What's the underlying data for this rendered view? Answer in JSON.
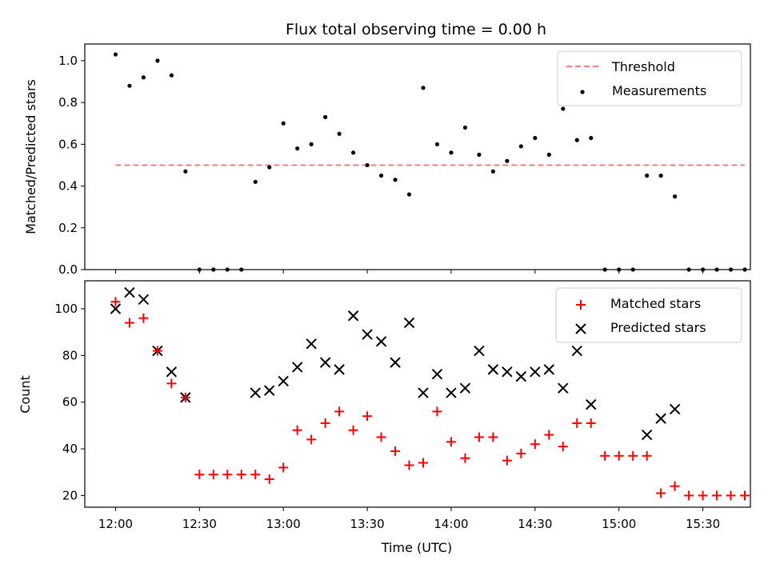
{
  "chart_data": [
    {
      "type": "scatter",
      "title": "Flux total observing time = 0.00 h",
      "xlabel": "",
      "ylabel": "Matched/Predicted stars",
      "xlim": [
        "11:49",
        "15:47"
      ],
      "ylim": [
        0,
        1.08
      ],
      "yticks": [
        "0.0",
        "0.2",
        "0.4",
        "0.6",
        "0.8",
        "1.0"
      ],
      "legend_position": "top-right",
      "colors": {
        "threshold": "#f08080",
        "measurements": "#000000"
      },
      "series": [
        {
          "name": "Threshold",
          "kind": "dashed-line",
          "x": [
            "12:00",
            "15:45"
          ],
          "y": [
            0.5,
            0.5
          ]
        },
        {
          "name": "Measurements",
          "kind": "points",
          "x": [
            "12:00",
            "12:05",
            "12:10",
            "12:15",
            "12:20",
            "12:25",
            "12:30",
            "12:35",
            "12:40",
            "12:45",
            "12:50",
            "12:55",
            "13:00",
            "13:05",
            "13:10",
            "13:15",
            "13:20",
            "13:25",
            "13:30",
            "13:35",
            "13:40",
            "13:45",
            "13:50",
            "13:55",
            "14:00",
            "14:05",
            "14:10",
            "14:15",
            "14:20",
            "14:25",
            "14:30",
            "14:35",
            "14:40",
            "14:45",
            "14:50",
            "14:55",
            "15:00",
            "15:05",
            "15:10",
            "15:15",
            "15:20",
            "15:25",
            "15:30",
            "15:35",
            "15:40",
            "15:45"
          ],
          "y": [
            1.03,
            0.88,
            0.92,
            1.0,
            0.93,
            0.47,
            0,
            0,
            0,
            0,
            0.42,
            0.49,
            0.7,
            0.58,
            0.6,
            0.73,
            0.65,
            0.56,
            0.5,
            0.45,
            0.43,
            0.36,
            0.87,
            0.6,
            0.56,
            0.68,
            0.55,
            0.47,
            0.52,
            0.59,
            0.63,
            0.55,
            0.77,
            0.62,
            0.63,
            0,
            0,
            0,
            0.45,
            0.45,
            0.35,
            0,
            0,
            0,
            0,
            0
          ]
        }
      ]
    },
    {
      "type": "scatter",
      "title": "",
      "xlabel": "Time (UTC)",
      "ylabel": "Count",
      "xlim": [
        "11:49",
        "15:47"
      ],
      "ylim": [
        15,
        112
      ],
      "yticks": [
        "20",
        "40",
        "60",
        "80",
        "100"
      ],
      "xticks": [
        "12:00",
        "12:30",
        "13:00",
        "13:30",
        "14:00",
        "14:30",
        "15:00",
        "15:30"
      ],
      "legend_position": "top-right",
      "colors": {
        "matched": "#ff0000",
        "predicted": "#000000"
      },
      "series": [
        {
          "name": "Matched stars",
          "marker": "plus",
          "x": [
            "12:00",
            "12:05",
            "12:10",
            "12:15",
            "12:20",
            "12:25",
            "12:30",
            "12:35",
            "12:40",
            "12:45",
            "12:50",
            "12:55",
            "13:00",
            "13:05",
            "13:10",
            "13:15",
            "13:20",
            "13:25",
            "13:30",
            "13:35",
            "13:40",
            "13:45",
            "13:50",
            "13:55",
            "14:00",
            "14:05",
            "14:10",
            "14:15",
            "14:20",
            "14:25",
            "14:30",
            "14:35",
            "14:40",
            "14:45",
            "14:50",
            "14:55",
            "15:00",
            "15:05",
            "15:10",
            "15:15",
            "15:20",
            "15:25",
            "15:30",
            "15:35",
            "15:40",
            "15:45"
          ],
          "y": [
            103,
            94,
            96,
            82,
            68,
            62,
            29,
            29,
            29,
            29,
            29,
            27,
            32,
            48,
            44,
            51,
            56,
            48,
            54,
            45,
            39,
            33,
            34,
            56,
            43,
            36,
            45,
            45,
            35,
            38,
            42,
            46,
            41,
            51,
            51,
            37,
            37,
            37,
            37,
            21,
            24,
            20,
            20,
            20,
            20,
            20
          ]
        },
        {
          "name": "Predicted stars",
          "marker": "x",
          "x": [
            "12:00",
            "12:05",
            "12:10",
            "12:15",
            "12:20",
            "12:25",
            "12:50",
            "12:55",
            "13:00",
            "13:05",
            "13:10",
            "13:15",
            "13:20",
            "13:25",
            "13:30",
            "13:35",
            "13:40",
            "13:45",
            "13:50",
            "13:55",
            "14:00",
            "14:05",
            "14:10",
            "14:15",
            "14:20",
            "14:25",
            "14:30",
            "14:35",
            "14:40",
            "14:45",
            "14:50",
            "15:10",
            "15:15",
            "15:20"
          ],
          "y": [
            100,
            107,
            104,
            82,
            73,
            62,
            64,
            65,
            69,
            75,
            85,
            77,
            74,
            97,
            89,
            86,
            77,
            94,
            64,
            72,
            64,
            66,
            82,
            74,
            73,
            71,
            73,
            74,
            66,
            82,
            59,
            46,
            53,
            57
          ]
        }
      ]
    }
  ]
}
